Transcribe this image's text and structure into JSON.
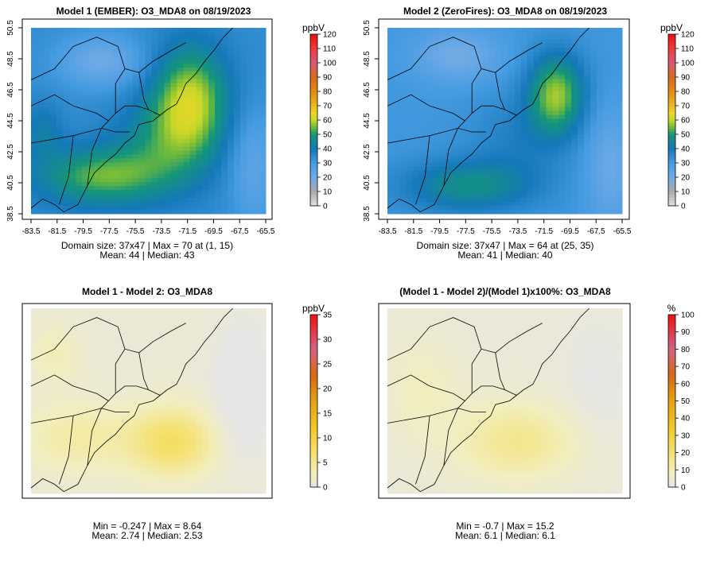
{
  "chart_data": [
    {
      "type": "heatmap",
      "title": "Model 1 (EMBER): O3_MDA8 on 08/19/2023",
      "units": "ppbV",
      "colorbar_ticks": [
        "0",
        "10",
        "20",
        "30",
        "40",
        "50",
        "60",
        "70",
        "80",
        "90",
        "100",
        "110",
        "120"
      ],
      "colorbar_range": [
        0,
        120
      ],
      "x_ticks": [
        "-83.5",
        "-81.5",
        "-79.5",
        "-77.5",
        "-75.5",
        "-73.5",
        "-71.5",
        "-69.5",
        "-67.5",
        "-65.5"
      ],
      "y_ticks": [
        "38.5",
        "40.5",
        "42.5",
        "44.5",
        "46.5",
        "48.5",
        "50.5"
      ],
      "xlim": [
        -83.5,
        -65.5
      ],
      "ylim": [
        38.5,
        50.5
      ],
      "domain_cols": 37,
      "domain_rows": 47,
      "stats_line1": "Domain size: 37x47 | Max = 70 at (1, 15)",
      "stats_line2": "Mean: 44 |  Median: 43",
      "max": 70,
      "mean": 44,
      "median": 43
    },
    {
      "type": "heatmap",
      "title": "Model 2 (ZeroFires): O3_MDA8 on 08/19/2023",
      "units": "ppbV",
      "colorbar_ticks": [
        "0",
        "10",
        "20",
        "30",
        "40",
        "50",
        "60",
        "70",
        "80",
        "90",
        "100",
        "110",
        "120"
      ],
      "colorbar_range": [
        0,
        120
      ],
      "x_ticks": [
        "-83.5",
        "-81.5",
        "-79.5",
        "-77.5",
        "-75.5",
        "-73.5",
        "-71.5",
        "-69.5",
        "-67.5",
        "-65.5"
      ],
      "y_ticks": [
        "38.5",
        "40.5",
        "42.5",
        "44.5",
        "46.5",
        "48.5",
        "50.5"
      ],
      "xlim": [
        -83.5,
        -65.5
      ],
      "ylim": [
        38.5,
        50.5
      ],
      "domain_cols": 37,
      "domain_rows": 47,
      "stats_line1": "Domain size: 37x47 | Max = 64 at (25, 35)",
      "stats_line2": "Mean: 41 |  Median: 40",
      "max": 64,
      "mean": 41,
      "median": 40
    },
    {
      "type": "heatmap",
      "title": "Model 1 - Model 2: O3_MDA8",
      "units": "ppbV",
      "colorbar_ticks": [
        "0",
        "5",
        "10",
        "15",
        "20",
        "25",
        "30",
        "35"
      ],
      "colorbar_range": [
        0,
        35
      ],
      "stats_line1": "Min = -0.247 | Max = 8.64",
      "stats_line2": "Mean: 2.74 |  Median: 2.53",
      "min": -0.247,
      "max": 8.64,
      "mean": 2.74,
      "median": 2.53
    },
    {
      "type": "heatmap",
      "title": "(Model 1 - Model 2)/(Model 1)x100%: O3_MDA8",
      "units": "%",
      "colorbar_ticks": [
        "0",
        "10",
        "20",
        "30",
        "40",
        "50",
        "60",
        "70",
        "80",
        "90",
        "100"
      ],
      "colorbar_range": [
        0,
        100
      ],
      "stats_line1": "Min = -0.7 | Max = 15.2",
      "stats_line2": "Mean: 6.1 |  Median: 6.1",
      "min": -0.7,
      "max": 15.2,
      "mean": 6.1,
      "median": 6.1
    }
  ]
}
